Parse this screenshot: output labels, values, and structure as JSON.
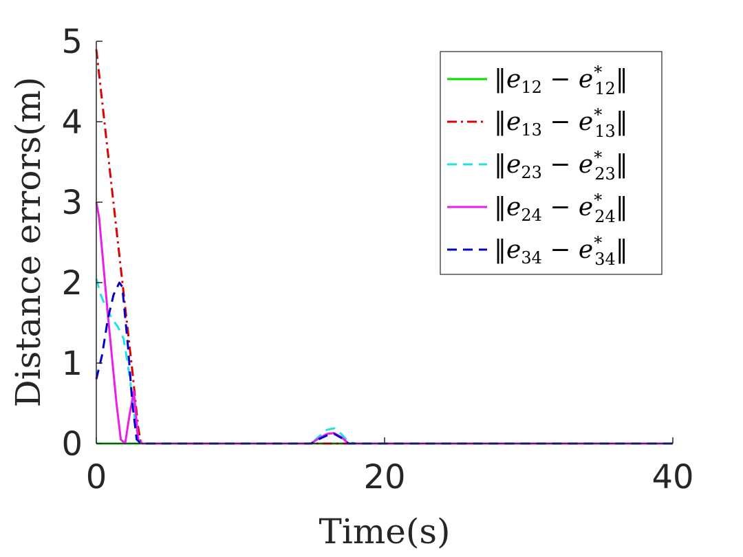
{
  "chart_data": {
    "type": "line",
    "title": "",
    "xlabel": "Time(s)",
    "ylabel": "Distance errors(m)",
    "xlim": [
      0,
      40
    ],
    "ylim": [
      0,
      5
    ],
    "xticks": [
      0,
      20,
      40
    ],
    "yticks": [
      0,
      1,
      2,
      3,
      4,
      5
    ],
    "xtick_labels": [
      "0",
      "20",
      "40"
    ],
    "ytick_labels": [
      "0",
      "1",
      "2",
      "3",
      "4",
      "5"
    ],
    "grid": false,
    "legend_position": "top-right",
    "series": [
      {
        "name": "||e12 − e12*||",
        "label_parts": {
          "sub": "12"
        },
        "color": "#00e000",
        "dash": "solid",
        "x": [
          0,
          40
        ],
        "y": [
          0,
          0
        ]
      },
      {
        "name": "||e13 − e13*||",
        "label_parts": {
          "sub": "13"
        },
        "color": "#dd0000",
        "dash": "dashdot",
        "x": [
          0,
          0.5,
          1,
          1.5,
          2,
          2.5,
          2.9,
          3.1,
          40
        ],
        "y": [
          4.9,
          4.1,
          3.3,
          2.5,
          1.7,
          0.9,
          0.2,
          0.0,
          0.0
        ]
      },
      {
        "name": "||e23 − e23*||",
        "label_parts": {
          "sub": "23"
        },
        "color": "#22e0e0",
        "dash": "dashed",
        "x": [
          0,
          0.3,
          0.7,
          1.1,
          1.5,
          1.9,
          2.3,
          2.7,
          3.0,
          14.9,
          15.4,
          16.0,
          16.5,
          17.0,
          17.5,
          18.0,
          40
        ],
        "y": [
          2.05,
          1.85,
          1.68,
          1.55,
          1.45,
          1.3,
          0.85,
          0.25,
          0.0,
          0.0,
          0.08,
          0.17,
          0.19,
          0.12,
          0.02,
          0.0,
          0.0
        ]
      },
      {
        "name": "||e24 − e24*||",
        "label_parts": {
          "sub": "24"
        },
        "color": "#e81ee8",
        "dash": "solid",
        "x": [
          0,
          0.2,
          0.5,
          0.8,
          1.1,
          1.4,
          1.7,
          2.0,
          2.3,
          2.6,
          2.9,
          3.2,
          14.9,
          15.4,
          16.0,
          16.5,
          17.0,
          17.5,
          40
        ],
        "y": [
          3.0,
          2.8,
          2.2,
          1.6,
          1.05,
          0.5,
          0.05,
          0.0,
          0.35,
          0.65,
          0.05,
          0.0,
          0.0,
          0.06,
          0.12,
          0.13,
          0.08,
          0.0,
          0.0
        ]
      },
      {
        "name": "||e34 − e34*||",
        "label_parts": {
          "sub": "34"
        },
        "color": "#0000cc",
        "dash": "dashed",
        "x": [
          0,
          0.4,
          0.8,
          1.2,
          1.6,
          1.8,
          2.2,
          2.5,
          2.8,
          3.1,
          14.9,
          15.4,
          16.0,
          16.5,
          17.0,
          17.5,
          40
        ],
        "y": [
          0.8,
          1.1,
          1.55,
          1.85,
          2.0,
          1.95,
          1.2,
          0.5,
          0.05,
          0.0,
          0.0,
          0.05,
          0.1,
          0.12,
          0.07,
          0.0,
          0.0
        ]
      }
    ]
  }
}
